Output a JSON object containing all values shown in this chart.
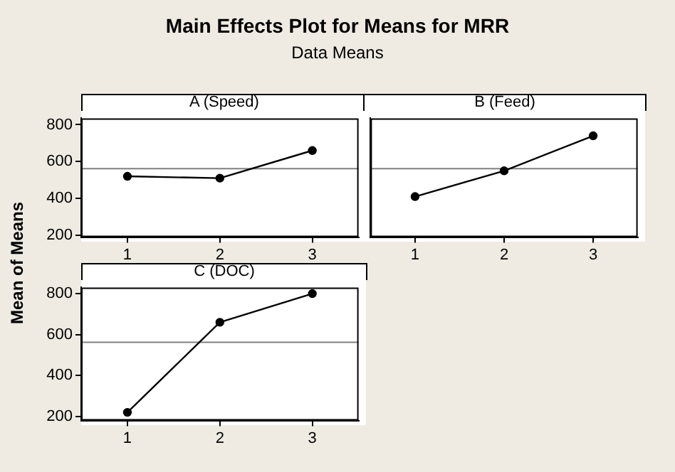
{
  "chart_data": [
    {
      "type": "line",
      "title": "A (Speed)",
      "annotations": [
        "Main Effects Plot for Means for MRR",
        "Data Means"
      ],
      "ylabel": "Mean of Means",
      "categories": [
        "1",
        "2",
        "3"
      ],
      "series": [
        {
          "color": "#000000",
          "values": [
            520,
            510,
            660
          ]
        }
      ],
      "ylim": [
        190,
        835
      ],
      "yticks": [
        200,
        400,
        600,
        800
      ],
      "ref_lines": [
        {
          "axis": "y",
          "value": 562,
          "color": "#808080"
        }
      ],
      "grid": false,
      "legend": false,
      "marker": "circle",
      "line_style": "solid"
    },
    {
      "type": "line",
      "title": "B (Feed)",
      "categories": [
        "1",
        "2",
        "3"
      ],
      "series": [
        {
          "color": "#000000",
          "values": [
            410,
            550,
            740
          ]
        }
      ],
      "ylim": [
        190,
        835
      ],
      "yticks": [
        200,
        400,
        600,
        800
      ],
      "ref_lines": [
        {
          "axis": "y",
          "value": 562,
          "color": "#808080"
        }
      ],
      "grid": false,
      "legend": false,
      "marker": "circle",
      "line_style": "solid",
      "tick_labels": "x"
    },
    {
      "type": "line",
      "title": "C (DOC)",
      "categories": [
        "1",
        "2",
        "3"
      ],
      "series": [
        {
          "color": "#000000",
          "values": [
            220,
            660,
            800
          ]
        }
      ],
      "ylim": [
        180,
        830
      ],
      "yticks": [
        200,
        400,
        600,
        800
      ],
      "ref_lines": [
        {
          "axis": "y",
          "value": 562,
          "color": "#808080"
        }
      ],
      "grid": false,
      "legend": false,
      "marker": "circle",
      "line_style": "solid"
    }
  ]
}
